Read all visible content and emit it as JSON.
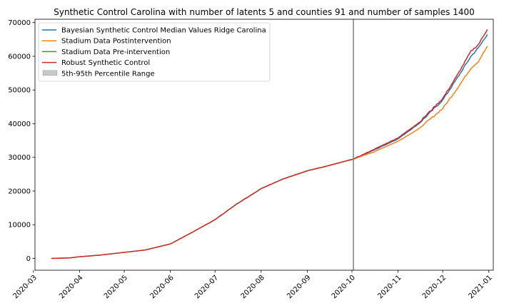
{
  "chart_data": {
    "type": "line",
    "title": "Synthetic Control Carolina with number of latents 5 and counties 91 and number of samples 1400",
    "xlabel": "",
    "ylabel": "",
    "x_tick_labels": [
      "2020-03",
      "2020-04",
      "2020-05",
      "2020-06",
      "2020-07",
      "2020-08",
      "2020-09",
      "2020-10",
      "2020-11",
      "2020-12",
      "2021-01"
    ],
    "x_range": [
      "2020-03-02",
      "2021-01-04"
    ],
    "ylim": [
      -3500,
      71000
    ],
    "y_ticks": [
      0,
      10000,
      20000,
      30000,
      40000,
      50000,
      60000,
      70000
    ],
    "intervention_date": "2020-10-02",
    "grid": false,
    "legend_position": "top-left",
    "legend": [
      {
        "label": "Bayesian Synthetic Control Median Values Ridge Carolina",
        "kind": "line",
        "color": "#1f77b4"
      },
      {
        "label": "Stadium Data Postintervention",
        "kind": "line",
        "color": "#ff7f0e"
      },
      {
        "label": "Stadium Data Pre-intervention",
        "kind": "line",
        "color": "#2ca02c"
      },
      {
        "label": "Robust Synthetic Control",
        "kind": "line",
        "color": "#d62728"
      },
      {
        "label": "5th-95th Percentile Range",
        "kind": "patch",
        "color": "#c8c8c8"
      }
    ],
    "series": [
      {
        "name": "Stadium Data Pre-intervention",
        "color": "#2ca02c",
        "x": [
          "2020-03-13",
          "2020-03-25",
          "2020-04-01",
          "2020-04-15",
          "2020-05-01",
          "2020-05-15",
          "2020-06-01",
          "2020-06-15",
          "2020-07-01",
          "2020-07-15",
          "2020-08-01",
          "2020-08-15",
          "2020-09-01",
          "2020-09-15",
          "2020-10-02"
        ],
        "y": [
          0,
          150,
          500,
          1000,
          1800,
          2500,
          4300,
          7600,
          11500,
          16000,
          20700,
          23500,
          26000,
          27500,
          29500
        ]
      },
      {
        "name": "Bayesian Synthetic Control Median Values Ridge Carolina",
        "color": "#1f77b4",
        "x": [
          "2020-10-02",
          "2020-10-15",
          "2020-11-01",
          "2020-11-15",
          "2020-12-01",
          "2020-12-10",
          "2020-12-20",
          "2020-12-25",
          "2020-12-31"
        ],
        "y": [
          29500,
          32000,
          35500,
          40000,
          47000,
          53000,
          60000,
          62500,
          66500
        ]
      },
      {
        "name": "Stadium Data Postintervention",
        "color": "#ff7f0e",
        "x": [
          "2020-10-02",
          "2020-10-15",
          "2020-11-01",
          "2020-11-15",
          "2020-12-01",
          "2020-12-10",
          "2020-12-20",
          "2020-12-25",
          "2020-12-31"
        ],
        "y": [
          29500,
          31500,
          34800,
          38500,
          44500,
          50000,
          56500,
          58500,
          63000
        ]
      },
      {
        "name": "Robust Synthetic Control",
        "color": "#d62728",
        "x": [
          "2020-03-13",
          "2020-03-25",
          "2020-04-01",
          "2020-04-15",
          "2020-05-01",
          "2020-05-15",
          "2020-06-01",
          "2020-06-15",
          "2020-07-01",
          "2020-07-15",
          "2020-08-01",
          "2020-08-15",
          "2020-09-01",
          "2020-09-15",
          "2020-10-02",
          "2020-10-15",
          "2020-11-01",
          "2020-11-15",
          "2020-12-01",
          "2020-12-10",
          "2020-12-20",
          "2020-12-25",
          "2020-12-31"
        ],
        "y": [
          0,
          150,
          500,
          1000,
          1800,
          2500,
          4300,
          7600,
          11500,
          16000,
          20700,
          23500,
          26000,
          27500,
          29500,
          32200,
          35800,
          40300,
          47500,
          53800,
          61500,
          63500,
          68000
        ]
      }
    ]
  }
}
